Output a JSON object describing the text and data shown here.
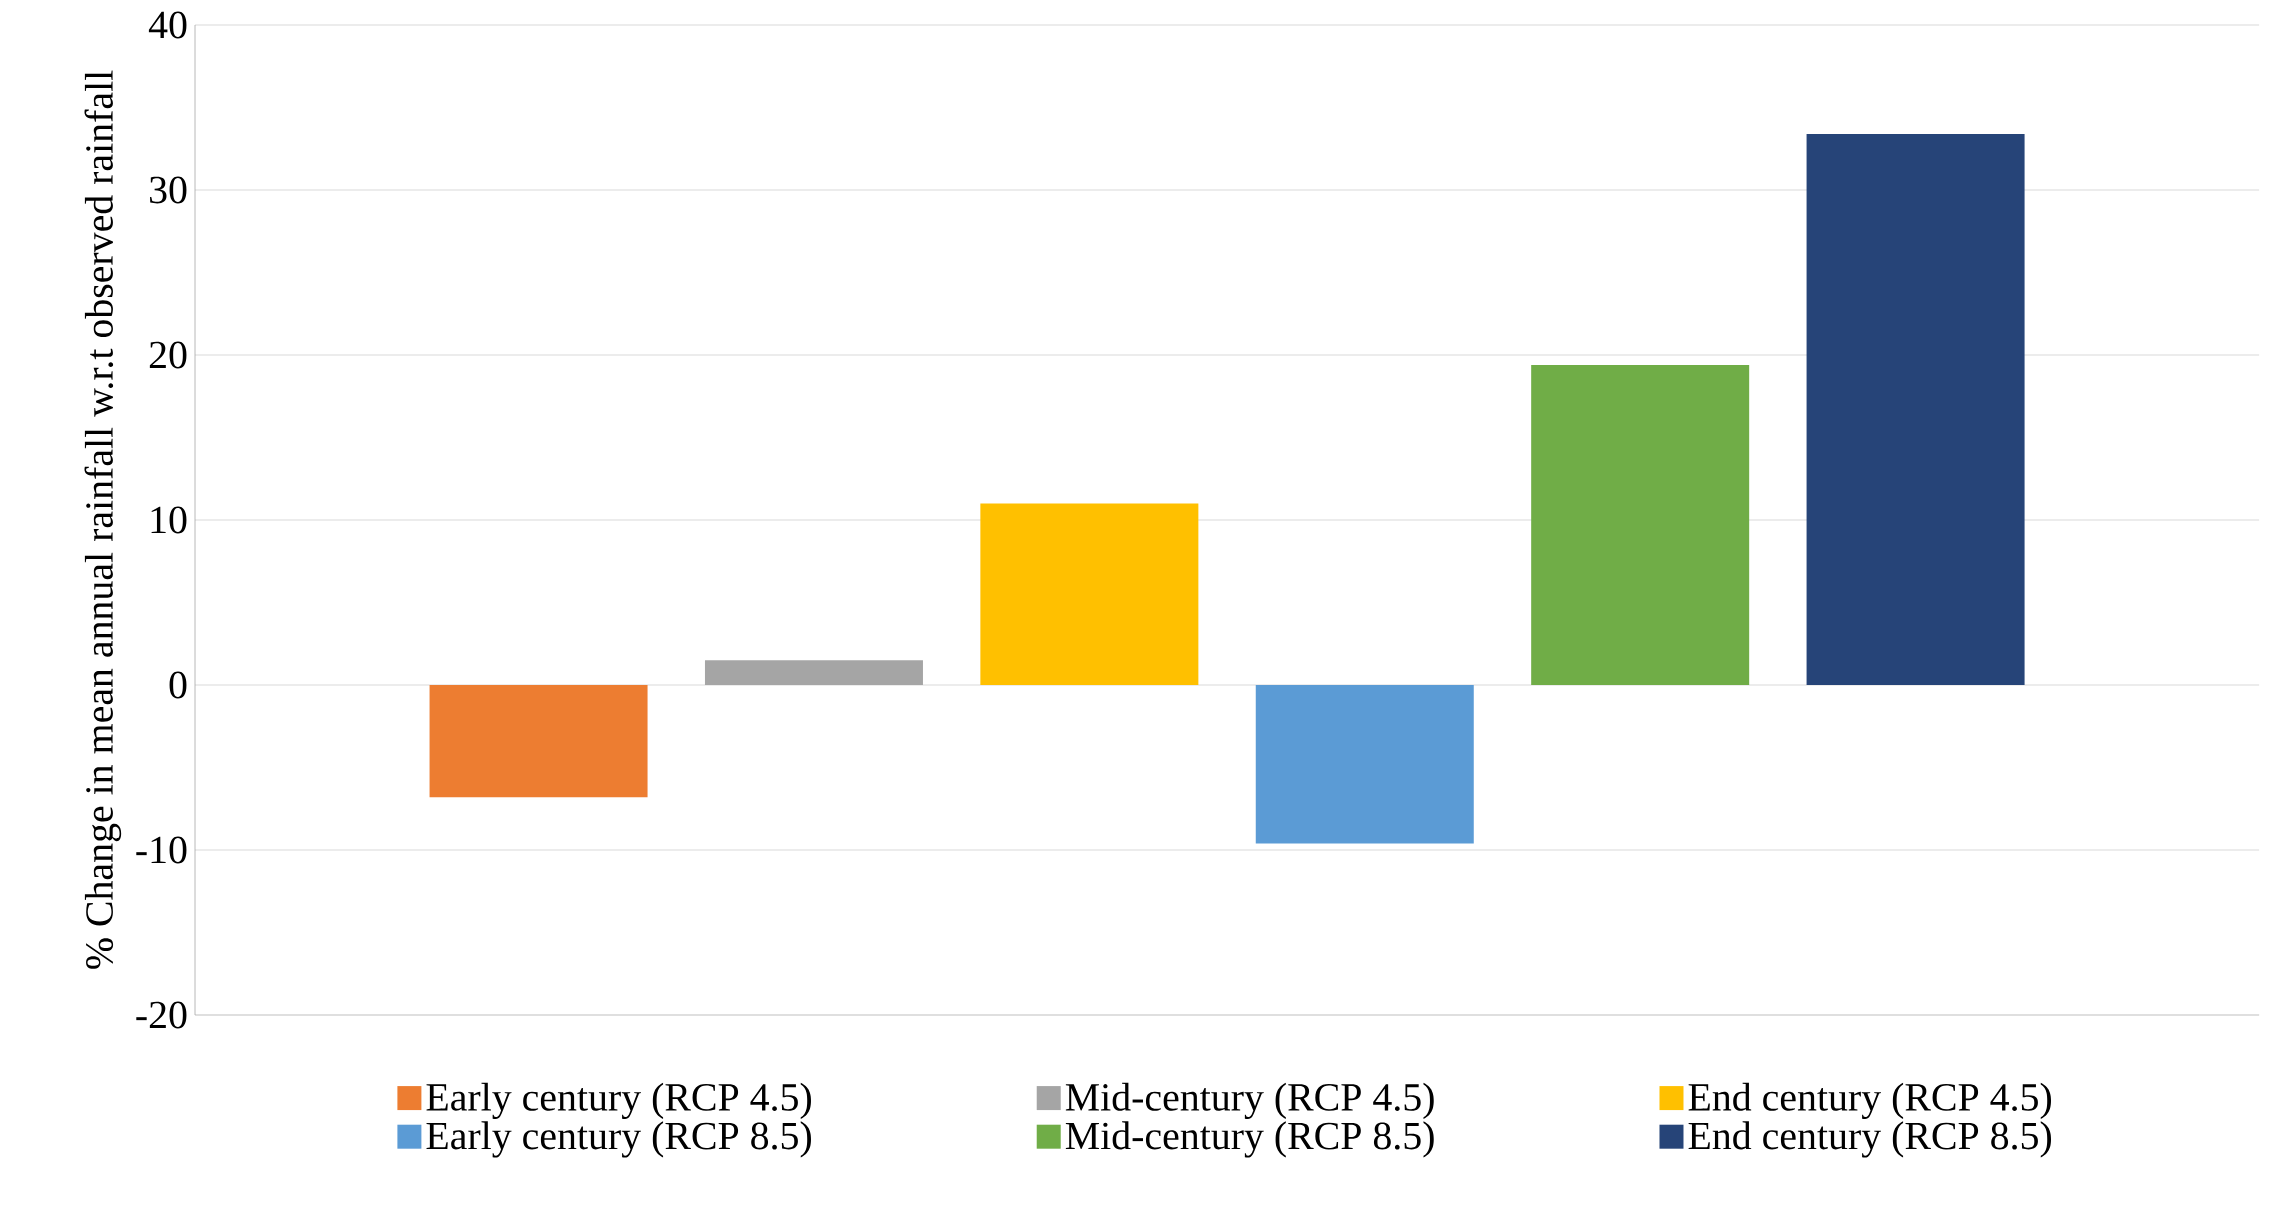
{
  "chart_data": {
    "type": "bar",
    "ylabel": "% Change in mean annual rainfall w.r.t observed  rainfall",
    "categories": [
      null
    ],
    "series": [
      {
        "name": "Early century (RCP 4.5)",
        "color": "#ed7d31",
        "values": [
          -6.8
        ]
      },
      {
        "name": "Mid-century (RCP 4.5)",
        "color": "#a5a5a5",
        "values": [
          1.5
        ]
      },
      {
        "name": "End century (RCP 4.5)",
        "color": "#ffc000",
        "values": [
          11.0
        ]
      },
      {
        "name": "Early century (RCP 8.5)",
        "color": "#5b9bd5",
        "values": [
          -9.6
        ]
      },
      {
        "name": "Mid-century (RCP 8.5)",
        "color": "#70ad47",
        "values": [
          19.4
        ]
      },
      {
        "name": "End century (RCP 8.5)",
        "color": "#264478",
        "values": [
          33.4
        ]
      }
    ],
    "ylim": [
      -20,
      40
    ],
    "yticks": [
      -20,
      -10,
      0,
      10,
      20,
      30,
      40
    ],
    "grid": "y",
    "legend": "bottom"
  }
}
